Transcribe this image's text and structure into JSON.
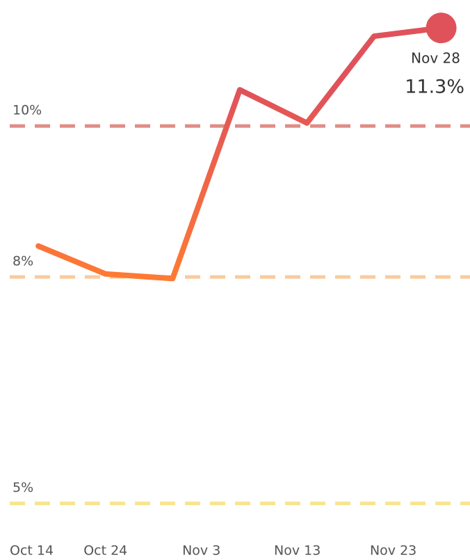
{
  "chart_data": {
    "type": "line",
    "x": [
      "Oct 17",
      "Oct 24",
      "Oct 31",
      "Nov 7",
      "Nov 14",
      "Nov 21",
      "Nov 28"
    ],
    "values": [
      8.41,
      8.04,
      7.98,
      10.48,
      10.04,
      11.19,
      11.3
    ],
    "value_labels": [
      null,
      null,
      null,
      null,
      null,
      null,
      "11.3%"
    ],
    "gradient": [
      "#ff7a33",
      "#e0525a"
    ],
    "marker_color": "#e0525a",
    "xlim": [
      "Oct 13",
      "Dec 1"
    ],
    "xticks": [
      "Oct 14",
      "Oct 24",
      "Nov 3",
      "Nov 13",
      "Nov 23"
    ],
    "ylim": [
      4.25,
      11.67
    ],
    "yticks": [
      {
        "value": 5,
        "label": "5%"
      },
      {
        "value": 8,
        "label": "8%"
      },
      {
        "value": 10,
        "label": "10%"
      }
    ],
    "ytick_colors": [
      "#f8e48e",
      "#f9cb9c",
      "#e08c86"
    ],
    "grid": true
  }
}
